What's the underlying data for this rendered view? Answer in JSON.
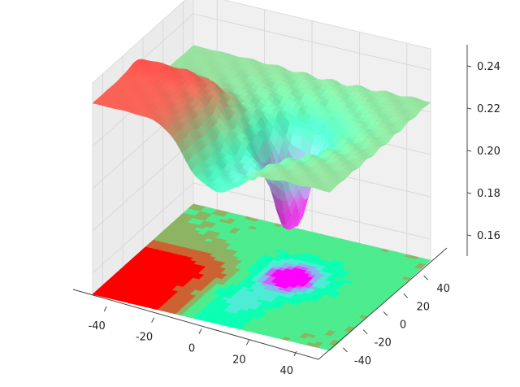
{
  "chart_data": {
    "type": "surface",
    "title": "",
    "xlabel": "",
    "ylabel": "",
    "zlabel": "",
    "colormap": "rainbow",
    "xlim": [
      -50,
      50
    ],
    "ylim": [
      -50,
      50
    ],
    "zlim": [
      0.15,
      0.25
    ],
    "x_ticks": [
      "-40",
      "-20",
      "0",
      "20",
      "40"
    ],
    "x_tick_values": [
      -40,
      -20,
      0,
      20,
      40
    ],
    "y_ticks": [
      "-40",
      "-20",
      "0",
      "20",
      "40"
    ],
    "y_tick_values": [
      -40,
      -20,
      0,
      20,
      40
    ],
    "z_ticks": [
      "0.16",
      "0.18",
      "0.20",
      "0.22",
      "0.24"
    ],
    "z_tick_values": [
      0.16,
      0.18,
      0.2,
      0.22,
      0.24
    ],
    "grid": true,
    "projection_contour": true,
    "surface_features": {
      "plateau_level": 0.225,
      "left_ridge_level": 0.243,
      "well_minimum": 0.185,
      "well_center": [
        10,
        5
      ]
    },
    "colors": {
      "low": "#5a3cf0",
      "high": "#ff3a1a",
      "plateau": "#f2c46a",
      "pane": "#f2f2f2"
    }
  }
}
